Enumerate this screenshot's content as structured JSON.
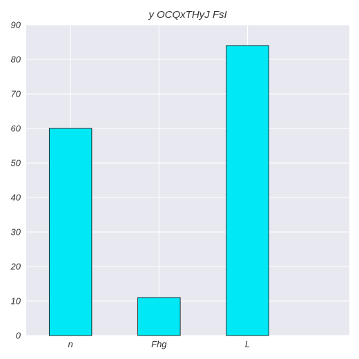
{
  "chart_data": {
    "type": "bar",
    "title": "y OCQxTHyJ FsI",
    "xlabel": "",
    "ylabel": "",
    "categories": [
      "n",
      "Fhg",
      "L"
    ],
    "values": [
      60,
      11,
      84
    ],
    "ylim": [
      0,
      90
    ],
    "yticks": [
      0,
      10,
      20,
      30,
      40,
      50,
      60,
      70,
      80,
      90
    ],
    "grid": true,
    "colors": {
      "bar_fill": "#00e8f5",
      "bar_edge": "#000000",
      "plot_background": "#e8e8f0",
      "grid": "#ffffff"
    }
  }
}
